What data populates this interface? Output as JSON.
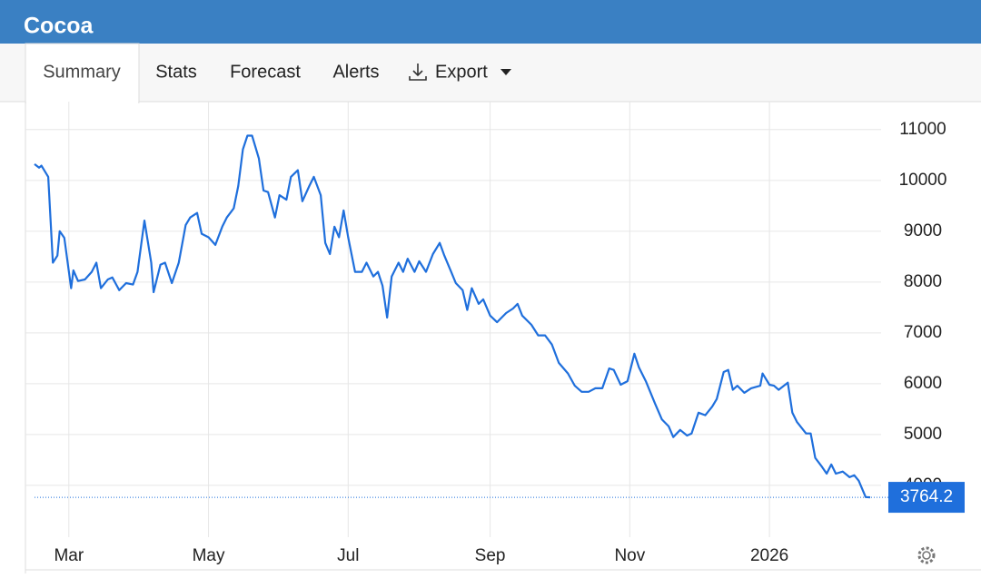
{
  "header": {
    "title": "Cocoa"
  },
  "tabs": [
    "Summary",
    "Stats",
    "Forecast",
    "Alerts",
    "Export"
  ],
  "chart_data": {
    "type": "line",
    "color": "#1f6fdc",
    "grid": true,
    "x": [
      0,
      2,
      3,
      6,
      8,
      10,
      11,
      13,
      16,
      17,
      19,
      22,
      25,
      27,
      29,
      32,
      34,
      37,
      40,
      43,
      45,
      48,
      51,
      52,
      55,
      57,
      60,
      63,
      66,
      68,
      71,
      73,
      76,
      79,
      82,
      84,
      87,
      89,
      91,
      93,
      95,
      98,
      100,
      102,
      105,
      107,
      110,
      112,
      115,
      117,
      120,
      122,
      125,
      127,
      129,
      131,
      133,
      135,
      137,
      140,
      143,
      145,
      148,
      150,
      152,
      154,
      156,
      159,
      161,
      163,
      166,
      168,
      171,
      174,
      177,
      179,
      182,
      184,
      187,
      189,
      191,
      194,
      196,
      199,
      202,
      206,
      209,
      211,
      213,
      217,
      220,
      223,
      226,
      229,
      233,
      236,
      239,
      242,
      245,
      248,
      251,
      253,
      256,
      259,
      262,
      264,
      267,
      271,
      274,
      277,
      279,
      282,
      285,
      287,
      290,
      293,
      296,
      298,
      301,
      303,
      305,
      307,
      310,
      313,
      317,
      318,
      321,
      323,
      325,
      329,
      331,
      333,
      337,
      339,
      341,
      344,
      346,
      348,
      350,
      353,
      356,
      358,
      360,
      363,
      365
    ],
    "values": [
      10320,
      10250,
      10290,
      10070,
      8380,
      8520,
      9000,
      8870,
      7880,
      8230,
      8020,
      8050,
      8200,
      8380,
      7880,
      8050,
      8090,
      7840,
      7980,
      7950,
      8200,
      9210,
      8380,
      7800,
      8340,
      8380,
      7980,
      8380,
      9120,
      9270,
      9360,
      8950,
      8880,
      8730,
      9090,
      9270,
      9450,
      9890,
      10610,
      10880,
      10880,
      10430,
      9800,
      9770,
      9270,
      9710,
      9620,
      10070,
      10200,
      9590,
      9890,
      10070,
      9710,
      8770,
      8550,
      9090,
      8880,
      9410,
      8880,
      8200,
      8200,
      8380,
      8110,
      8200,
      7930,
      7300,
      8110,
      8380,
      8200,
      8460,
      8200,
      8410,
      8200,
      8550,
      8770,
      8520,
      8200,
      7980,
      7840,
      7450,
      7880,
      7570,
      7660,
      7340,
      7210,
      7390,
      7480,
      7570,
      7340,
      7160,
      6950,
      6950,
      6770,
      6410,
      6200,
      5960,
      5840,
      5840,
      5910,
      5910,
      6300,
      6270,
      5980,
      6050,
      6590,
      6320,
      6050,
      5610,
      5300,
      5160,
      4950,
      5090,
      4980,
      5020,
      5430,
      5380,
      5550,
      5700,
      6230,
      6270,
      5880,
      5960,
      5820,
      5910,
      5960,
      6200,
      5980,
      5960,
      5880,
      6020,
      5430,
      5250,
      5020,
      5020,
      4540,
      4360,
      4230,
      4410,
      4230,
      4270,
      4160,
      4200,
      4090,
      3770,
      3764.2
    ],
    "xlim": [
      0,
      365
    ],
    "xticks": [
      {
        "value": 15,
        "label": "Mar"
      },
      {
        "value": 76,
        "label": "May"
      },
      {
        "value": 137,
        "label": "Jul"
      },
      {
        "value": 199,
        "label": "Sep"
      },
      {
        "value": 260,
        "label": "Nov"
      },
      {
        "value": 321,
        "label": "2026"
      }
    ],
    "ylim": [
      2980,
      11550
    ],
    "yticks": [
      4000,
      5000,
      6000,
      7000,
      8000,
      9000,
      10000,
      11000
    ]
  }
}
